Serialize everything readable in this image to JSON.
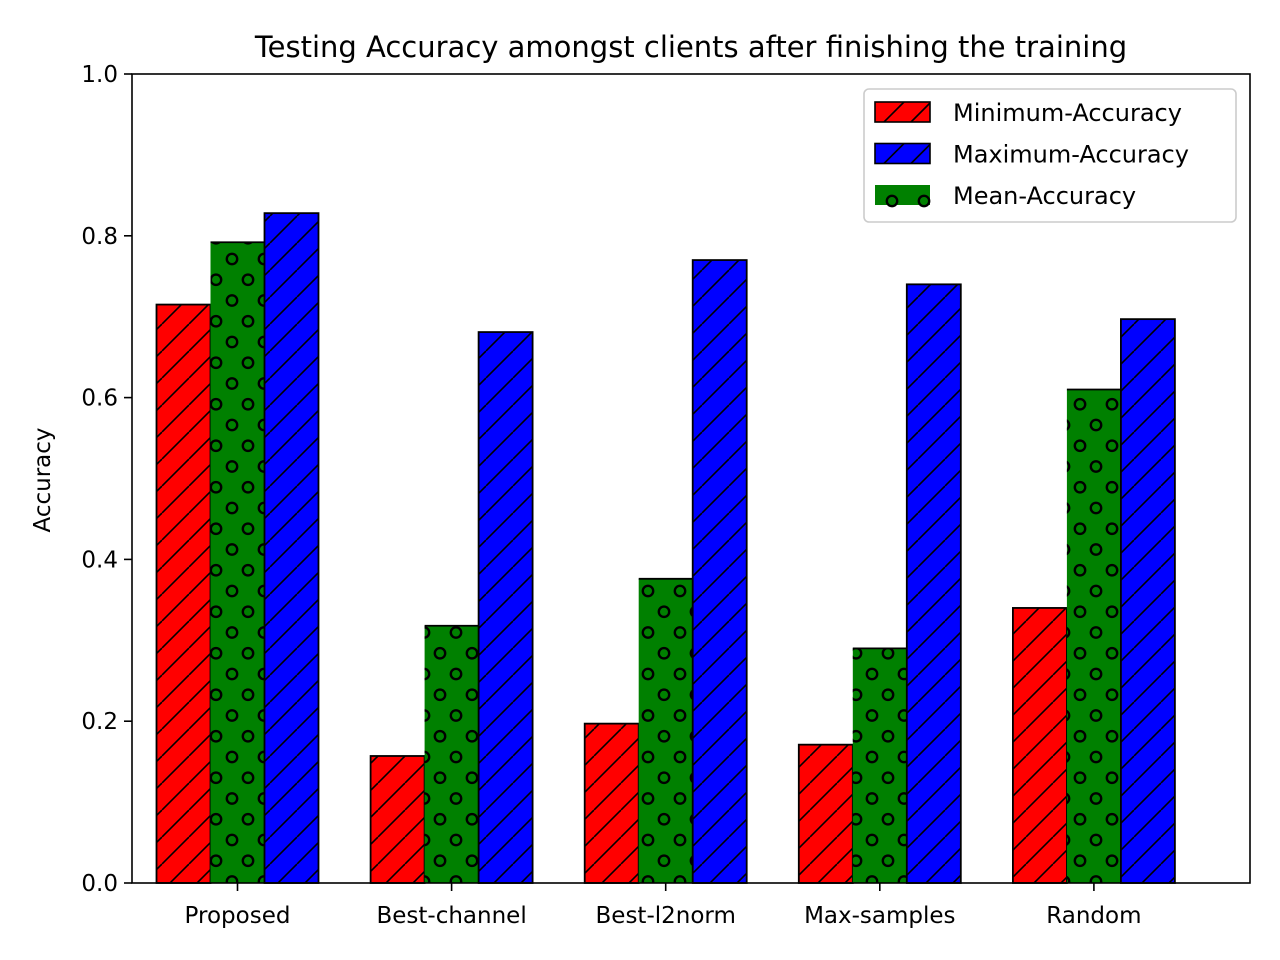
{
  "chart_data": {
    "type": "bar",
    "title": "Testing Accuracy amongst clients after finishing the training",
    "xlabel": "",
    "ylabel": "Accuracy",
    "ylim": [
      0,
      1.0
    ],
    "yticks": [
      "0.0",
      "0.2",
      "0.4",
      "0.6",
      "0.8",
      "1.0"
    ],
    "categories": [
      "Proposed",
      "Best-channel",
      "Best-l2norm",
      "Max-samples",
      "Random"
    ],
    "series": [
      {
        "name": "Minimum-Accuracy",
        "color": "#ff0000",
        "hatch": "diagonal",
        "values": [
          0.715,
          0.157,
          0.197,
          0.171,
          0.34
        ]
      },
      {
        "name": "Mean-Accuracy",
        "color": "#008000",
        "hatch": "circles",
        "values": [
          0.792,
          0.318,
          0.376,
          0.29,
          0.61
        ]
      },
      {
        "name": "Maximum-Accuracy",
        "color": "#0000ff",
        "hatch": "diagonal",
        "values": [
          0.828,
          0.681,
          0.77,
          0.74,
          0.697
        ]
      }
    ],
    "legend": {
      "placement": "top-right",
      "entries": [
        "Minimum-Accuracy",
        "Maximum-Accuracy",
        "Mean-Accuracy"
      ]
    },
    "grid": false
  }
}
